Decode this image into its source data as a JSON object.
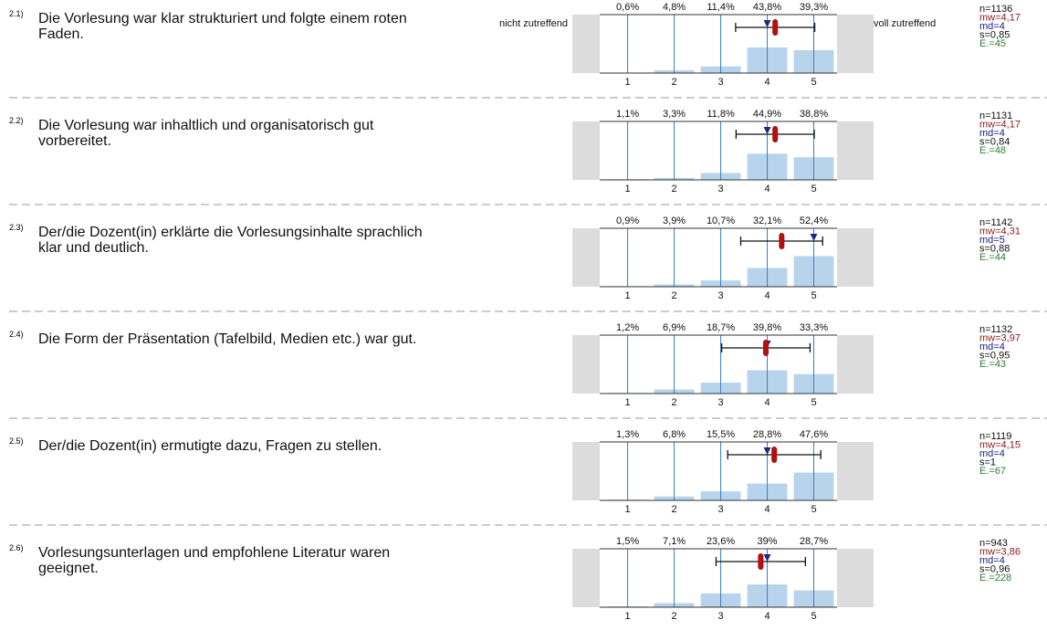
{
  "chart_data": [
    {
      "type": "bar",
      "number": "2.1)",
      "title": "Die Vorlesung war klar strukturiert und folgte einem roten Faden.",
      "left_label": "nicht zutreffend",
      "right_label": "voll zutreffend",
      "xticks": [
        1,
        2,
        3,
        4,
        5
      ],
      "values": [
        0.6,
        4.8,
        11.4,
        43.8,
        39.3
      ],
      "value_labels": [
        "0,6%",
        "4,8%",
        "11,4%",
        "43,8%",
        "39,3%"
      ],
      "xlim": [
        0.4,
        5.5
      ],
      "ylim": [
        0,
        100
      ],
      "n": {
        "value": 1136,
        "label": "n=1136"
      },
      "mean": {
        "value": 4.17,
        "label": "mw=4,17"
      },
      "median": {
        "value": 4,
        "label": "md=4"
      },
      "sd": {
        "value": 0.85,
        "label": "s=0,85"
      },
      "abstentions": {
        "value": 45,
        "label": "E.=45"
      }
    },
    {
      "type": "bar",
      "number": "2.2)",
      "title": "Die Vorlesung war inhaltlich und organisatorisch gut vorbereitet.",
      "xticks": [
        1,
        2,
        3,
        4,
        5
      ],
      "values": [
        1.1,
        3.3,
        11.8,
        44.9,
        38.8
      ],
      "value_labels": [
        "1,1%",
        "3,3%",
        "11,8%",
        "44,9%",
        "38,8%"
      ],
      "xlim": [
        0.4,
        5.5
      ],
      "ylim": [
        0,
        100
      ],
      "n": {
        "value": 1131,
        "label": "n=1131"
      },
      "mean": {
        "value": 4.17,
        "label": "mw=4,17"
      },
      "median": {
        "value": 4,
        "label": "md=4"
      },
      "sd": {
        "value": 0.84,
        "label": "s=0,84"
      },
      "abstentions": {
        "value": 48,
        "label": "E.=48"
      }
    },
    {
      "type": "bar",
      "number": "2.3)",
      "title": "Der/die Dozent(in) erklärte die Vorlesungsinhalte sprachlich klar und deutlich.",
      "xticks": [
        1,
        2,
        3,
        4,
        5
      ],
      "values": [
        0.9,
        3.9,
        10.7,
        32.1,
        52.4
      ],
      "value_labels": [
        "0,9%",
        "3,9%",
        "10,7%",
        "32,1%",
        "52,4%"
      ],
      "xlim": [
        0.4,
        5.5
      ],
      "ylim": [
        0,
        100
      ],
      "n": {
        "value": 1142,
        "label": "n=1142"
      },
      "mean": {
        "value": 4.31,
        "label": "mw=4,31"
      },
      "median": {
        "value": 5,
        "label": "md=5"
      },
      "sd": {
        "value": 0.88,
        "label": "s=0,88"
      },
      "abstentions": {
        "value": 44,
        "label": "E.=44"
      }
    },
    {
      "type": "bar",
      "number": "2.4)",
      "title": "Die Form der Präsentation (Tafelbild, Medien etc.) war gut.",
      "xticks": [
        1,
        2,
        3,
        4,
        5
      ],
      "values": [
        1.2,
        6.9,
        18.7,
        39.8,
        33.3
      ],
      "value_labels": [
        "1,2%",
        "6,9%",
        "18,7%",
        "39,8%",
        "33,3%"
      ],
      "xlim": [
        0.4,
        5.5
      ],
      "ylim": [
        0,
        100
      ],
      "n": {
        "value": 1132,
        "label": "n=1132"
      },
      "mean": {
        "value": 3.97,
        "label": "mw=3,97"
      },
      "median": {
        "value": 4,
        "label": "md=4"
      },
      "sd": {
        "value": 0.95,
        "label": "s=0,95"
      },
      "abstentions": {
        "value": 43,
        "label": "E.=43"
      }
    },
    {
      "type": "bar",
      "number": "2.5)",
      "title": "Der/die Dozent(in) ermutigte dazu, Fragen zu stellen.",
      "xticks": [
        1,
        2,
        3,
        4,
        5
      ],
      "values": [
        1.3,
        6.8,
        15.5,
        28.8,
        47.6
      ],
      "value_labels": [
        "1,3%",
        "6,8%",
        "15,5%",
        "28,8%",
        "47,6%"
      ],
      "xlim": [
        0.4,
        5.5
      ],
      "ylim": [
        0,
        100
      ],
      "n": {
        "value": 1119,
        "label": "n=1119"
      },
      "mean": {
        "value": 4.15,
        "label": "mw=4,15"
      },
      "median": {
        "value": 4,
        "label": "md=4"
      },
      "sd": {
        "value": 1,
        "label": "s=1"
      },
      "abstentions": {
        "value": 67,
        "label": "E.=67"
      }
    },
    {
      "type": "bar",
      "number": "2.6)",
      "title": "Vorlesungsunterlagen und empfohlene Literatur waren geeignet.",
      "xticks": [
        1,
        2,
        3,
        4,
        5
      ],
      "values": [
        1.5,
        7.1,
        23.6,
        39,
        28.7
      ],
      "value_labels": [
        "1,5%",
        "7,1%",
        "23,6%",
        "39%",
        "28,7%"
      ],
      "xlim": [
        0.4,
        5.5
      ],
      "ylim": [
        0,
        100
      ],
      "n": {
        "value": 943,
        "label": "n=943"
      },
      "mean": {
        "value": 3.86,
        "label": "mw=3,86"
      },
      "median": {
        "value": 4,
        "label": "md=4"
      },
      "sd": {
        "value": 0.96,
        "label": "s=0,96"
      },
      "abstentions": {
        "value": 228,
        "label": "E.=228"
      }
    }
  ]
}
